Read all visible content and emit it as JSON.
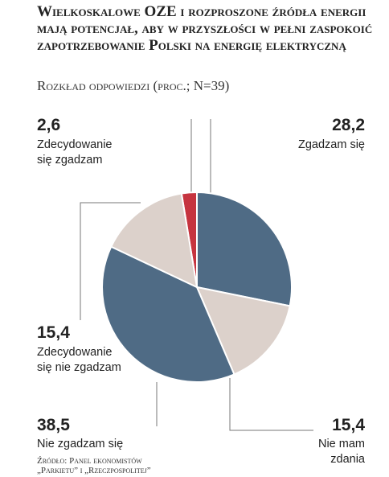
{
  "header": {
    "title": "Wielkoskalowe OZE i rozproszone źródła energii mają potencjał, aby w przyszłości w pełni zaspokoić zapotrzebowanie Polski na energię elektryczną",
    "subtitle": "Rozkład odpowiedzi (proc.; N=39)"
  },
  "chart_data": {
    "type": "pie",
    "slices": [
      {
        "label": "Zdecydowanie się zgadzam",
        "value_text": "2,6",
        "value": 2.6,
        "color": "#c6343f"
      },
      {
        "label": "Zgadzam się",
        "value_text": "28,2",
        "value": 28.2,
        "color": "#4f6b85"
      },
      {
        "label": "Nie mam zdania",
        "value_text": "15,4",
        "value": 15.4,
        "color": "#dcd1cb"
      },
      {
        "label": "Nie zgadzam się",
        "value_text": "38,5",
        "value": 38.5,
        "color": "#4f6b85"
      },
      {
        "label": "Zdecydowanie się nie zgadzam",
        "value_text": "15,4",
        "value": 15.4,
        "color": "#dcd1cb"
      }
    ]
  },
  "labels": {
    "top_left": {
      "value": "2,6",
      "line1": "Zdecydowanie",
      "line2": "się zgadzam"
    },
    "top_right": {
      "value": "28,2",
      "line1": "Zgadzam się"
    },
    "mid_left": {
      "value": "15,4",
      "line1": "Zdecydowanie",
      "line2": "się nie zgadzam"
    },
    "bottom_left": {
      "value": "38,5",
      "line1": "Nie zgadzam się"
    },
    "bottom_right": {
      "value": "15,4",
      "line1": "Nie mam",
      "line2": "zdania"
    }
  },
  "source": {
    "line1": "Źródło: Panel ekonomistów",
    "line2": "„Parkietu” i „Rzeczpospolitej”"
  }
}
